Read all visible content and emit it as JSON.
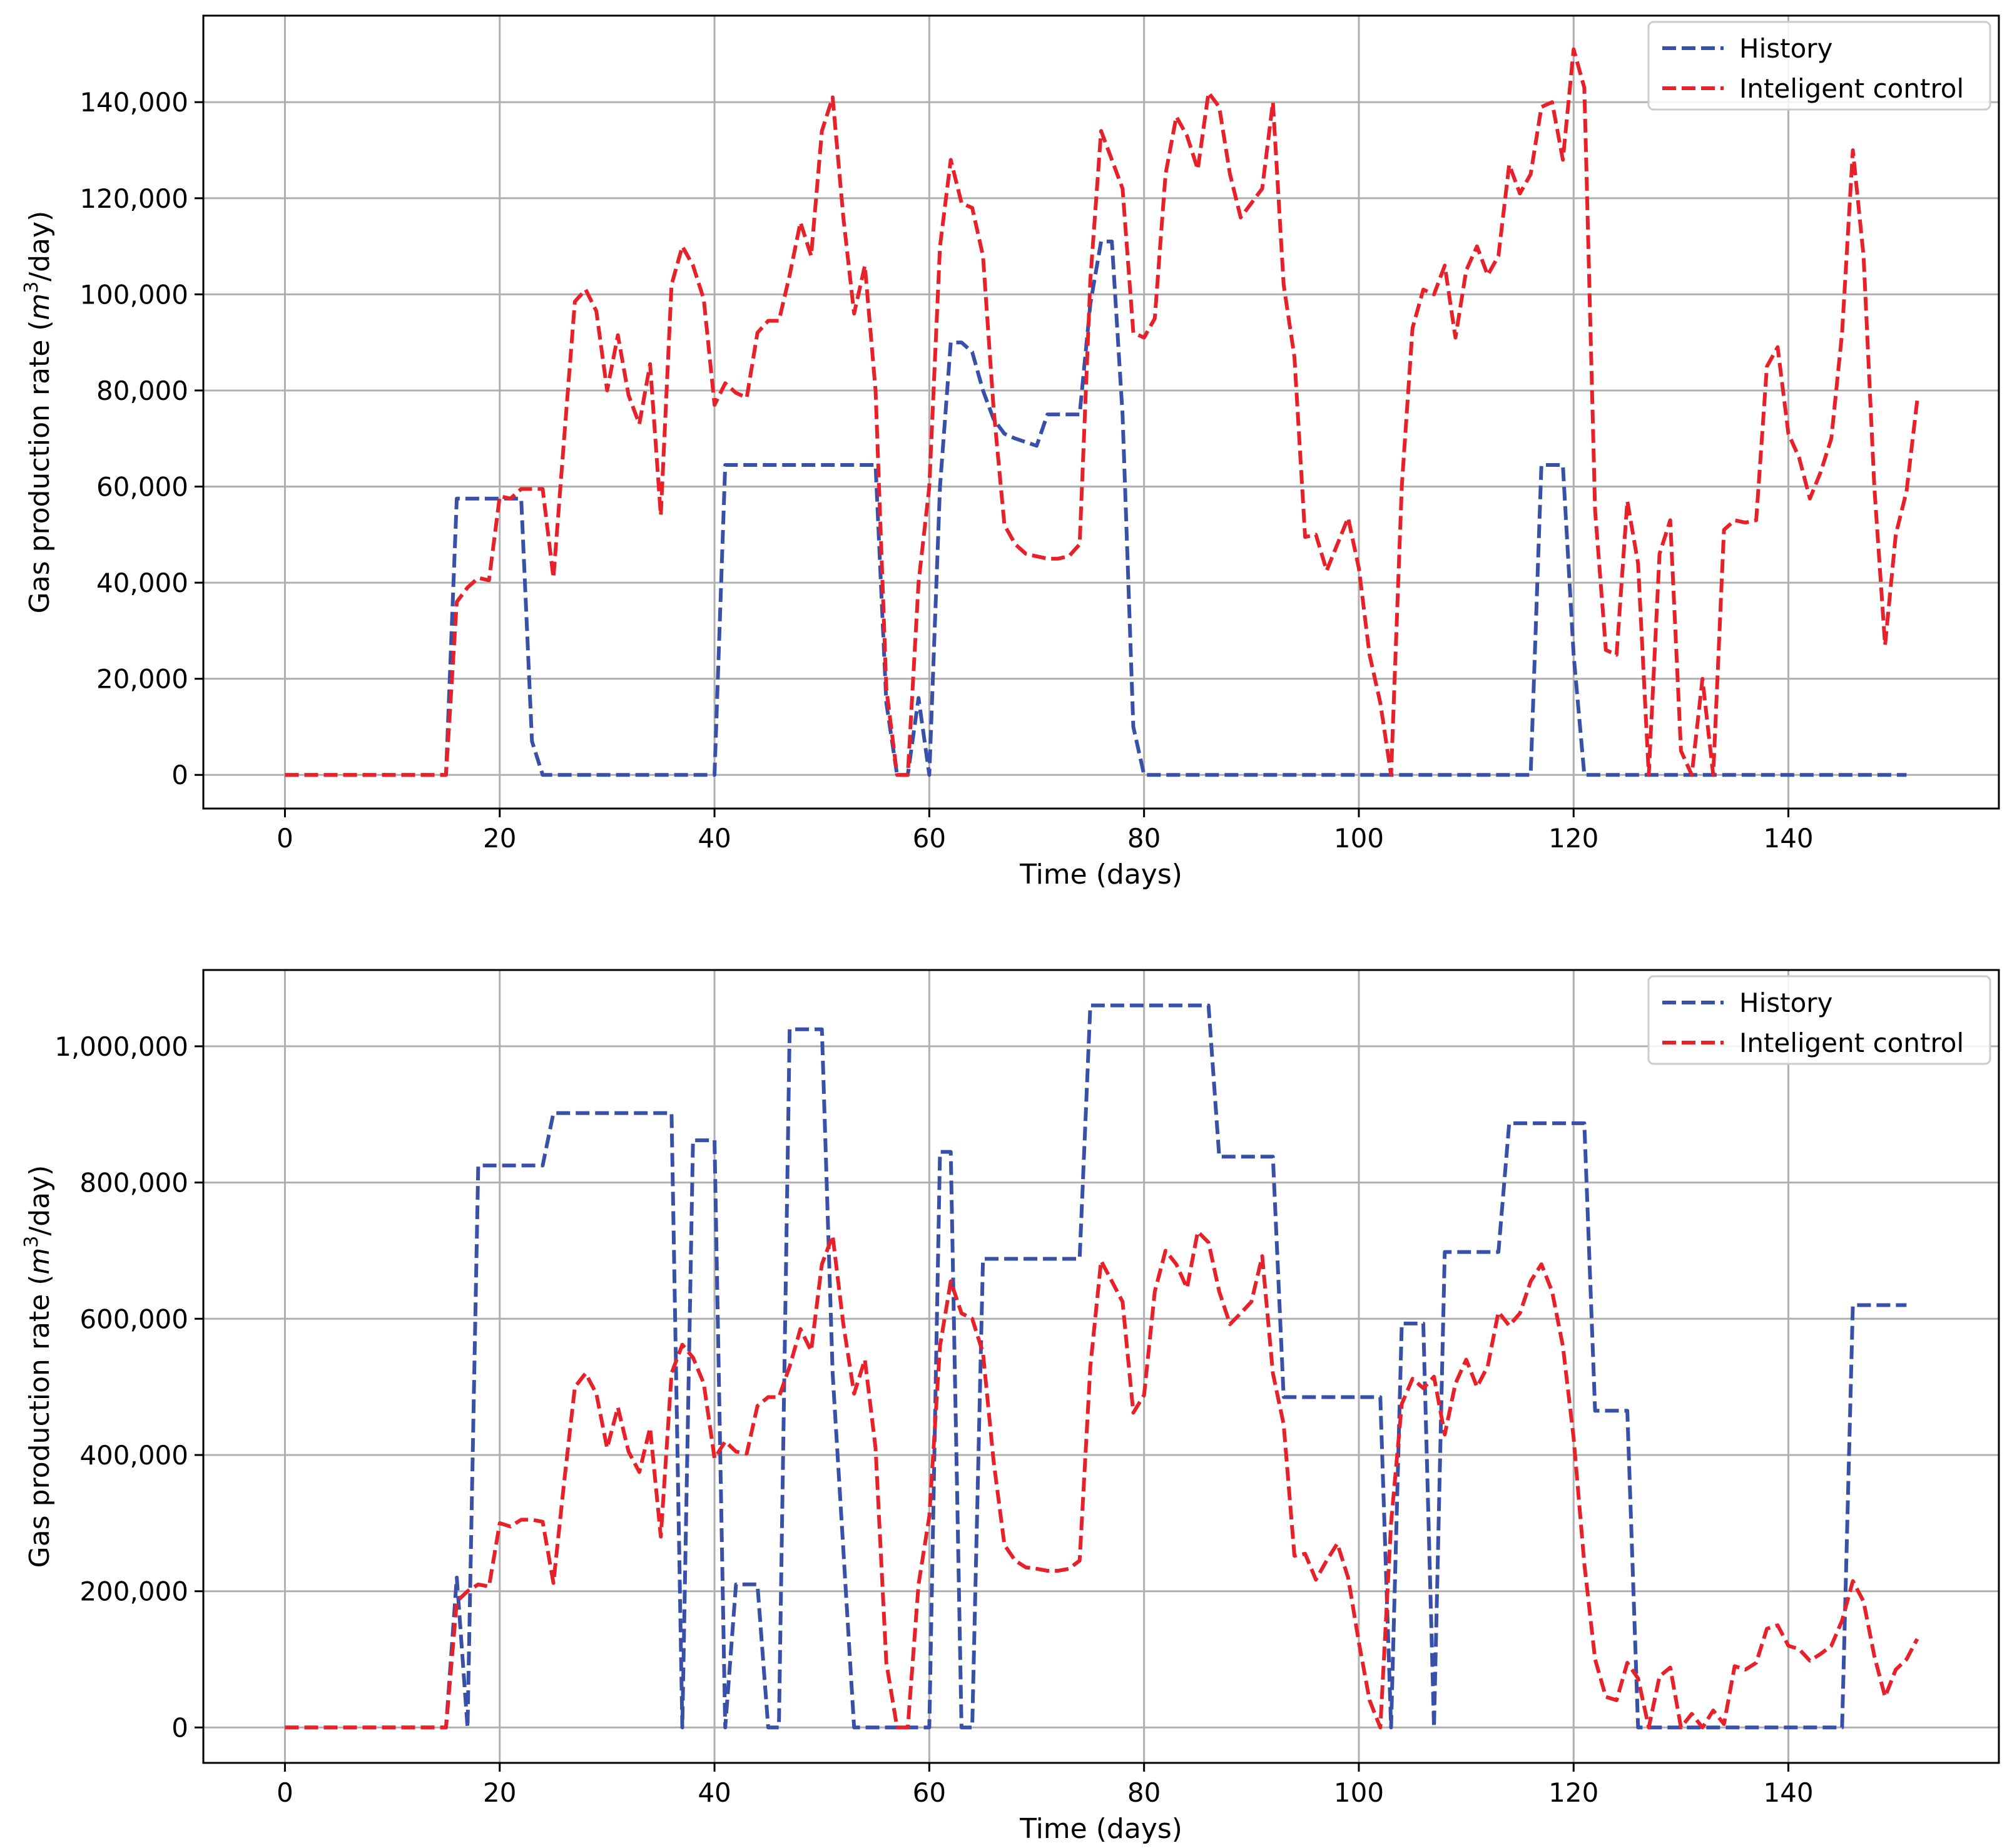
{
  "chart_data": [
    {
      "type": "line",
      "title": "",
      "xlabel": "Time (days)",
      "ylabel_prefix": "Gas production rate (",
      "ylabel_math": "m",
      "ylabel_sup": "3",
      "ylabel_suffix": "/day)",
      "xlim": [
        -7.6,
        159.6
      ],
      "ylim": [
        -7000,
        158000
      ],
      "xticks": [
        0,
        20,
        40,
        60,
        80,
        100,
        120,
        140
      ],
      "xtick_labels": [
        "0",
        "20",
        "40",
        "60",
        "80",
        "100",
        "120",
        "140"
      ],
      "yticks": [
        0,
        20000,
        40000,
        60000,
        80000,
        100000,
        120000,
        140000
      ],
      "ytick_labels": [
        "0",
        "20,000",
        "40,000",
        "60,000",
        "80,000",
        "100,000",
        "120,000",
        "140,000"
      ],
      "grid": true,
      "legend_position": "top-right",
      "series": [
        {
          "name": "History",
          "color": "#3850a8",
          "x": [
            0,
            15,
            16,
            22,
            23,
            24,
            40,
            41,
            55,
            56,
            57,
            58,
            59,
            60,
            61,
            62,
            63,
            64,
            65,
            66,
            67,
            68,
            70,
            71,
            72,
            74,
            75,
            76,
            77,
            78,
            79,
            80,
            116,
            117,
            119,
            120,
            121,
            151
          ],
          "values": [
            0,
            0,
            57500,
            57500,
            7000,
            0,
            0,
            64500,
            64500,
            15000,
            0,
            0,
            16000,
            0,
            60000,
            90000,
            90000,
            88000,
            80000,
            74000,
            71000,
            70000,
            68500,
            75000,
            75000,
            75000,
            98000,
            111000,
            111000,
            75000,
            10000,
            0,
            0,
            64500,
            64500,
            25000,
            0,
            0
          ]
        },
        {
          "name": "Inteligent control",
          "color": "#e8202a",
          "x": [
            0,
            15,
            16,
            17,
            18,
            19,
            20,
            21,
            22,
            23,
            24,
            25,
            26,
            27,
            28,
            29,
            30,
            31,
            32,
            33,
            34,
            35,
            36,
            37,
            38,
            39,
            40,
            41,
            42,
            43,
            44,
            45,
            46,
            47,
            48,
            49,
            50,
            51,
            52,
            53,
            54,
            55,
            56,
            57,
            58,
            59,
            60,
            61,
            62,
            63,
            64,
            65,
            66,
            67,
            68,
            69,
            70,
            71,
            72,
            73,
            74,
            75,
            76,
            77,
            78,
            79,
            80,
            81,
            82,
            83,
            84,
            85,
            86,
            87,
            88,
            89,
            90,
            91,
            92,
            93,
            94,
            95,
            96,
            97,
            98,
            99,
            100,
            101,
            102,
            103,
            104,
            105,
            106,
            107,
            108,
            109,
            110,
            111,
            112,
            113,
            114,
            115,
            116,
            117,
            118,
            119,
            120,
            121,
            122,
            123,
            124,
            125,
            126,
            127,
            128,
            129,
            130,
            131,
            132,
            133,
            134,
            135,
            136,
            137,
            138,
            139,
            140,
            141,
            142,
            143,
            144,
            145,
            146,
            147,
            148,
            149,
            150,
            151,
            152
          ],
          "values": [
            0,
            0,
            36000,
            39000,
            41000,
            40500,
            58000,
            57500,
            59500,
            59500,
            59500,
            41000,
            70000,
            98500,
            101000,
            96500,
            80000,
            91500,
            79000,
            73000,
            85500,
            54000,
            102000,
            110000,
            106000,
            99000,
            77000,
            81500,
            79500,
            78500,
            92000,
            94500,
            94500,
            104000,
            115000,
            108000,
            134000,
            141000,
            116000,
            96000,
            106000,
            80000,
            18000,
            0,
            0,
            40000,
            60000,
            110000,
            128000,
            119000,
            118000,
            108000,
            76000,
            52000,
            48000,
            46000,
            45500,
            45000,
            45000,
            45500,
            48000,
            103000,
            134000,
            128000,
            122000,
            92000,
            91000,
            95000,
            125000,
            137000,
            133000,
            126000,
            142000,
            139000,
            125000,
            116000,
            119000,
            122000,
            140000,
            102000,
            87000,
            49500,
            50000,
            42500,
            48000,
            53500,
            43000,
            25000,
            15000,
            0,
            60000,
            93000,
            101000,
            100000,
            106000,
            91000,
            105000,
            110000,
            104000,
            108000,
            127000,
            121000,
            125000,
            139000,
            140000,
            128000,
            151000,
            143000,
            55000,
            26000,
            25000,
            57000,
            44000,
            0,
            46000,
            53000,
            5000,
            0,
            20000,
            0,
            51000,
            53000,
            52500,
            53000,
            85000,
            89000,
            71000,
            66000,
            57500,
            63000,
            70000,
            92000,
            130000,
            108000,
            60000,
            27000,
            50000,
            59000,
            78000
          ]
        }
      ]
    },
    {
      "type": "line",
      "title": "",
      "xlabel": "Time (days)",
      "ylabel_prefix": "Gas production rate (",
      "ylabel_math": "m",
      "ylabel_sup": "3",
      "ylabel_suffix": "/day)",
      "xlim": [
        -7.6,
        159.6
      ],
      "ylim": [
        -52000,
        1112000
      ],
      "xticks": [
        0,
        20,
        40,
        60,
        80,
        100,
        120,
        140
      ],
      "xtick_labels": [
        "0",
        "20",
        "40",
        "60",
        "80",
        "100",
        "120",
        "140"
      ],
      "yticks": [
        0,
        200000,
        400000,
        600000,
        800000,
        1000000
      ],
      "ytick_labels": [
        "0",
        "200,000",
        "400,000",
        "600,000",
        "800,000",
        "1,000,000"
      ],
      "grid": true,
      "legend_position": "top-right",
      "series": [
        {
          "name": "History",
          "color": "#3850a8",
          "x": [
            0,
            15,
            16,
            17,
            18,
            24,
            25,
            36,
            37,
            38,
            40,
            41,
            42,
            44,
            45,
            46,
            47,
            50,
            51,
            53,
            54,
            60,
            61,
            62,
            63,
            64,
            65,
            74,
            75,
            86,
            87,
            92,
            93,
            102,
            103,
            104,
            106,
            107,
            108,
            112,
            113,
            114,
            121,
            122,
            125,
            126,
            127,
            145,
            146,
            151
          ],
          "values": [
            0,
            0,
            220000,
            0,
            825000,
            825000,
            902000,
            902000,
            0,
            862000,
            862000,
            0,
            210000,
            210000,
            0,
            0,
            1025000,
            1025000,
            520000,
            0,
            0,
            0,
            845000,
            845000,
            0,
            0,
            688000,
            688000,
            1060000,
            1060000,
            838000,
            838000,
            485000,
            485000,
            0,
            593000,
            593000,
            0,
            698000,
            698000,
            698000,
            887000,
            887000,
            465000,
            465000,
            0,
            0,
            0,
            620000,
            620000
          ]
        },
        {
          "name": "Inteligent control",
          "color": "#e8202a",
          "x": [
            0,
            15,
            16,
            17,
            18,
            19,
            20,
            21,
            22,
            23,
            24,
            25,
            26,
            27,
            28,
            29,
            30,
            31,
            32,
            33,
            34,
            35,
            36,
            37,
            38,
            39,
            40,
            41,
            42,
            43,
            44,
            45,
            46,
            47,
            48,
            49,
            50,
            51,
            52,
            53,
            54,
            55,
            56,
            57,
            58,
            59,
            60,
            61,
            62,
            63,
            64,
            65,
            66,
            67,
            68,
            69,
            70,
            71,
            72,
            73,
            74,
            75,
            76,
            77,
            78,
            79,
            80,
            81,
            82,
            83,
            84,
            85,
            86,
            87,
            88,
            89,
            90,
            91,
            92,
            93,
            94,
            95,
            96,
            97,
            98,
            99,
            100,
            101,
            102,
            103,
            104,
            105,
            106,
            107,
            108,
            109,
            110,
            111,
            112,
            113,
            114,
            115,
            116,
            117,
            118,
            119,
            120,
            121,
            122,
            123,
            124,
            125,
            126,
            127,
            128,
            129,
            130,
            131,
            132,
            133,
            134,
            135,
            136,
            137,
            138,
            139,
            140,
            141,
            142,
            143,
            144,
            145,
            146,
            147,
            148,
            149,
            150,
            151,
            152
          ],
          "values": [
            0,
            0,
            185000,
            200000,
            210000,
            207000,
            300000,
            295000,
            305000,
            305000,
            302000,
            212000,
            360000,
            500000,
            520000,
            490000,
            410000,
            470000,
            405000,
            375000,
            440000,
            280000,
            520000,
            562000,
            543000,
            505000,
            395000,
            420000,
            405000,
            402000,
            472000,
            485000,
            485000,
            530000,
            585000,
            553000,
            680000,
            722000,
            592000,
            490000,
            540000,
            410000,
            95000,
            0,
            0,
            210000,
            310000,
            560000,
            655000,
            608000,
            600000,
            550000,
            390000,
            268000,
            245000,
            235000,
            233000,
            230000,
            230000,
            233000,
            245000,
            530000,
            685000,
            655000,
            625000,
            462000,
            488000,
            640000,
            700000,
            680000,
            645000,
            728000,
            712000,
            640000,
            592000,
            608000,
            625000,
            692000,
            520000,
            445000,
            252000,
            255000,
            217000,
            245000,
            270000,
            220000,
            125000,
            40000,
            0,
            300000,
            475000,
            512000,
            498000,
            515000,
            430000,
            505000,
            540000,
            500000,
            530000,
            610000,
            590000,
            608000,
            655000,
            680000,
            640000,
            560000,
            425000,
            240000,
            100000,
            45000,
            40000,
            95000,
            72000,
            0,
            75000,
            88000,
            0,
            20000,
            0,
            25000,
            5000,
            90000,
            85000,
            95000,
            145000,
            150000,
            120000,
            115000,
            98000,
            108000,
            120000,
            157000,
            215000,
            185000,
            105000,
            45000,
            85000,
            100000,
            130000
          ]
        }
      ]
    }
  ]
}
